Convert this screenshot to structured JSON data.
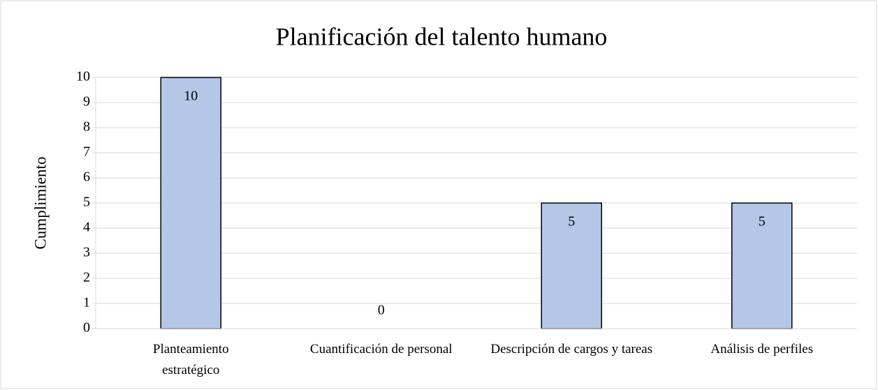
{
  "chart_data": {
    "type": "bar",
    "title": "Planificación del talento humano",
    "y_label": "Cumplimiento",
    "categories": [
      "Planteamiento estratégico",
      "Cuantificación de personal",
      "Descripción de cargos y tareas",
      "Análisis de perfiles"
    ],
    "values": [
      10,
      0,
      5,
      5
    ],
    "color": "#b4c7e7",
    "ylim": [
      0,
      10
    ],
    "yticks": [
      0,
      1,
      2,
      3,
      4,
      5,
      6,
      7,
      8,
      9,
      10
    ],
    "grid": true
  }
}
